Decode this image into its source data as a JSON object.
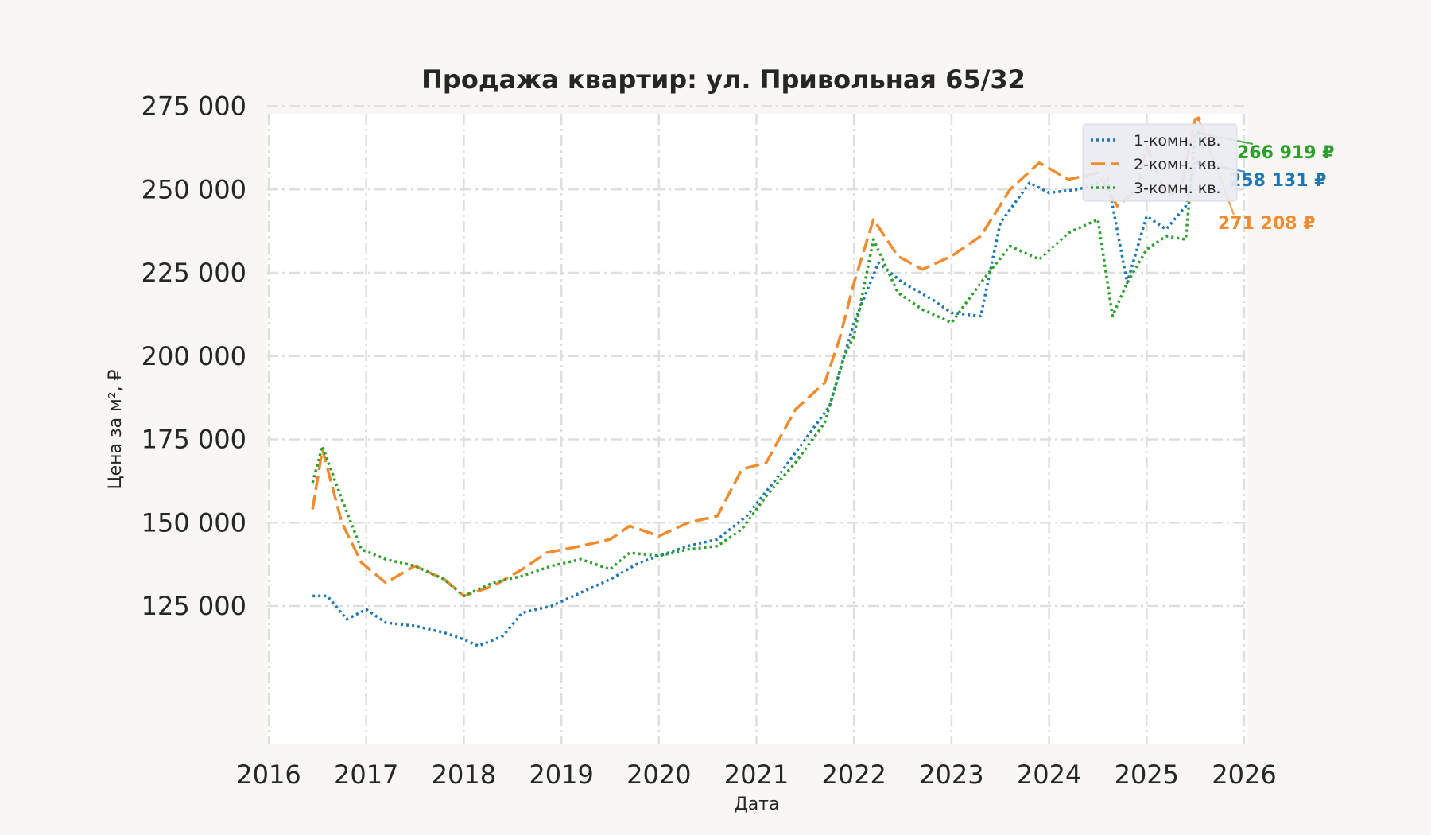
{
  "chart_data": {
    "type": "line",
    "title": "Продажа квартир: ул. Привольная 65/32",
    "xlabel": "Дата",
    "ylabel": "Цена за м², ₽",
    "xlim": [
      2016.0,
      2026.0
    ],
    "ylim": [
      104000,
      290000
    ],
    "x_ticks": [
      "2016",
      "2017",
      "2018",
      "2019",
      "2020",
      "2021",
      "2022",
      "2023",
      "2024",
      "2025",
      "2026"
    ],
    "y_ticks": [
      {
        "value": 125000,
        "label": "125 000"
      },
      {
        "value": 150000,
        "label": "150 000"
      },
      {
        "value": 175000,
        "label": "175 000"
      },
      {
        "value": 200000,
        "label": "200 000"
      },
      {
        "value": 225000,
        "label": "225 000"
      },
      {
        "value": 250000,
        "label": "250 000"
      },
      {
        "value": 275000,
        "label": "275 000"
      }
    ],
    "grid": true,
    "legend_position": "top-right",
    "series": [
      {
        "name": "1-комн. кв.",
        "color": "#1f77b4",
        "dash": "dotted",
        "x": [
          2016.45,
          2016.6,
          2016.8,
          2017.0,
          2017.2,
          2017.5,
          2017.8,
          2018.0,
          2018.15,
          2018.4,
          2018.6,
          2018.9,
          2019.2,
          2019.5,
          2019.8,
          2020.0,
          2020.3,
          2020.6,
          2020.9,
          2021.2,
          2021.5,
          2021.75,
          2022.0,
          2022.25,
          2022.5,
          2022.8,
          2023.0,
          2023.3,
          2023.5,
          2023.8,
          2024.0,
          2024.3,
          2024.6,
          2024.8,
          2025.0,
          2025.2,
          2025.4,
          2025.5
        ],
        "y": [
          128000,
          128000,
          121000,
          124000,
          120000,
          119000,
          117000,
          115000,
          113000,
          116000,
          123000,
          125000,
          129000,
          133000,
          138000,
          140000,
          143000,
          145000,
          152000,
          163000,
          175000,
          185000,
          210000,
          228000,
          222000,
          217000,
          213000,
          212000,
          240000,
          252000,
          249000,
          250000,
          253000,
          222000,
          242000,
          238000,
          245000,
          258131
        ]
      },
      {
        "name": "2-комн. кв.",
        "color": "#f28a2e",
        "dash": "dashed",
        "x": [
          2016.45,
          2016.55,
          2016.75,
          2016.95,
          2017.2,
          2017.5,
          2017.8,
          2018.0,
          2018.3,
          2018.6,
          2018.85,
          2019.2,
          2019.5,
          2019.7,
          2020.0,
          2020.3,
          2020.6,
          2020.85,
          2021.1,
          2021.4,
          2021.7,
          2021.85,
          2022.0,
          2022.2,
          2022.45,
          2022.7,
          2023.0,
          2023.3,
          2023.6,
          2023.9,
          2024.2,
          2024.5,
          2024.7,
          2024.9,
          2025.0,
          2025.2,
          2025.35,
          2025.5
        ],
        "y": [
          154000,
          172000,
          150000,
          138000,
          132000,
          137000,
          133000,
          128000,
          131000,
          136000,
          141000,
          143000,
          145000,
          149000,
          146000,
          150000,
          152000,
          166000,
          168000,
          184000,
          192000,
          205000,
          222000,
          241000,
          230000,
          226000,
          230000,
          236000,
          250000,
          258000,
          253000,
          255000,
          245000,
          250000,
          263000,
          248000,
          250000,
          271208
        ]
      },
      {
        "name": "3-комн. кв.",
        "color": "#2ca02c",
        "dash": "dotted",
        "x": [
          2016.45,
          2016.55,
          2016.75,
          2016.95,
          2017.2,
          2017.5,
          2017.8,
          2018.0,
          2018.3,
          2018.6,
          2018.9,
          2019.2,
          2019.5,
          2019.7,
          2020.0,
          2020.3,
          2020.6,
          2020.85,
          2021.1,
          2021.4,
          2021.7,
          2021.9,
          2022.0,
          2022.2,
          2022.45,
          2022.7,
          2023.0,
          2023.3,
          2023.6,
          2023.9,
          2024.2,
          2024.5,
          2024.65,
          2024.8,
          2025.0,
          2025.2,
          2025.4,
          2025.5
        ],
        "y": [
          162000,
          173000,
          157000,
          142000,
          139000,
          137000,
          133000,
          128000,
          132000,
          134000,
          137000,
          139000,
          136000,
          141000,
          140000,
          142000,
          143000,
          148000,
          158000,
          168000,
          180000,
          200000,
          206000,
          235000,
          219000,
          214000,
          210000,
          222000,
          233000,
          229000,
          237000,
          241000,
          212000,
          222000,
          232000,
          236000,
          235000,
          266919
        ]
      }
    ],
    "annotations": [
      {
        "text": "266 919 ₽",
        "series": "3-комн. кв.",
        "color": "#2ca02c"
      },
      {
        "text": "258 131 ₽",
        "series": "1-комн. кв.",
        "color": "#1f77b4"
      },
      {
        "text": "271 208 ₽",
        "series": "2-комн. кв.",
        "color": "#f28a2e"
      }
    ]
  }
}
